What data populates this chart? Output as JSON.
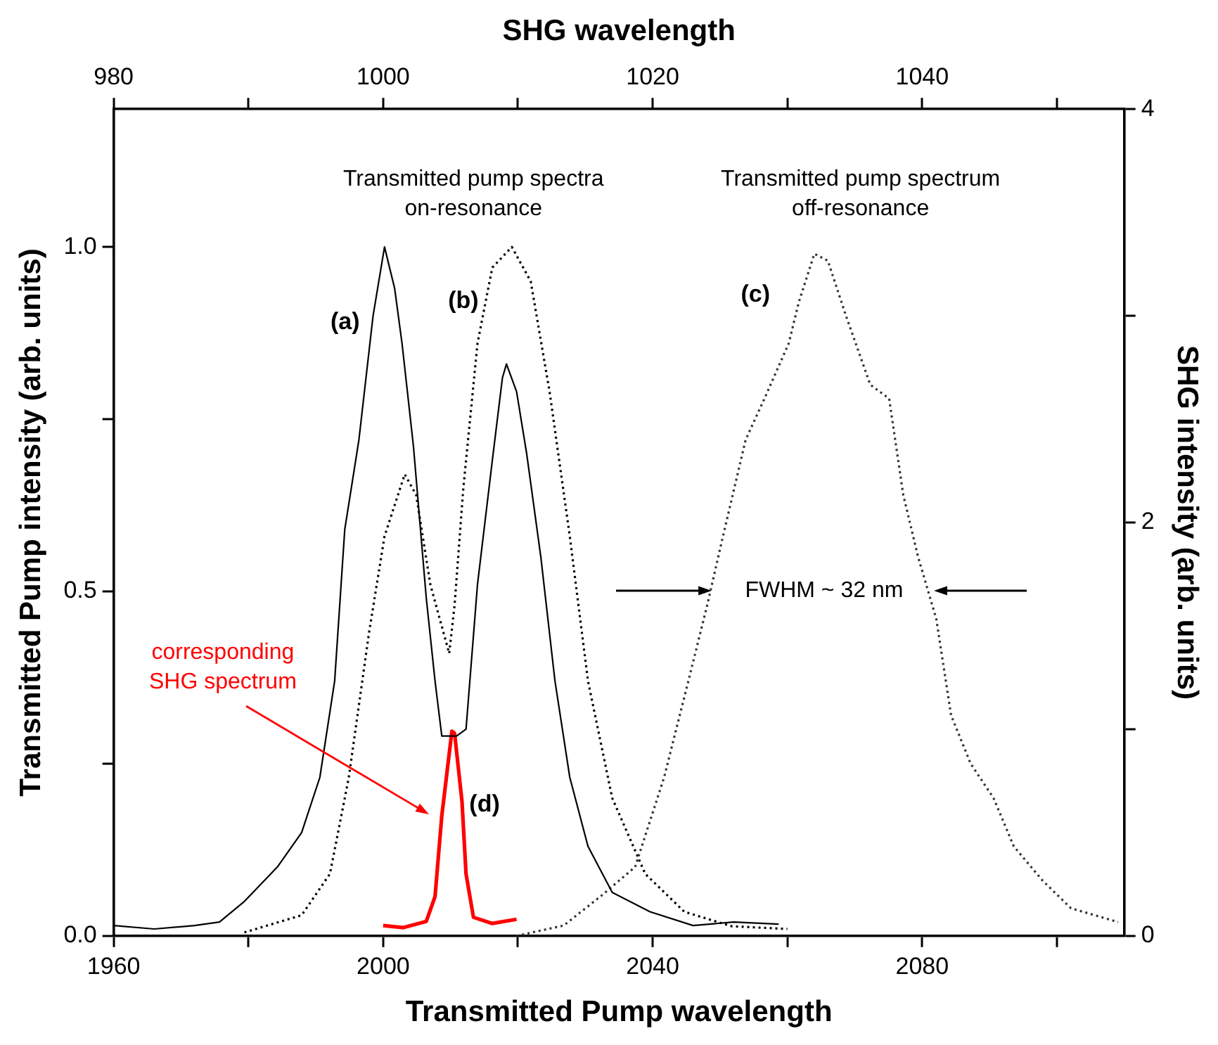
{
  "chart_data": {
    "type": "line",
    "xlabel": "Transmitted Pump wavelength",
    "x2label": "SHG wavelength",
    "ylabel": "Transmitted Pump intensity (arb. units)",
    "y2label": "SHG intensity (arb. units)",
    "xlim": [
      1960,
      2110
    ],
    "xticks": [
      1960,
      {
        "value": 1980,
        "label": null
      },
      2000,
      {
        "value": 2020,
        "label": null
      },
      2040,
      {
        "value": 2060,
        "label": null
      },
      2080,
      {
        "value": 2100,
        "label": null
      }
    ],
    "x2lim": [
      980,
      1055
    ],
    "x2ticks": [
      980,
      {
        "value": 990,
        "label": null
      },
      1000,
      {
        "value": 1010,
        "label": null
      },
      1020,
      {
        "value": 1030,
        "label": null
      },
      1040,
      {
        "value": 1050,
        "label": null
      }
    ],
    "ylim": [
      0,
      1.2
    ],
    "yticks": [
      {
        "value": 0,
        "label": "0.0"
      },
      {
        "value": 0.25,
        "label": null
      },
      0.5,
      {
        "value": 0.75,
        "label": null
      },
      {
        "value": 1,
        "label": "1.0"
      }
    ],
    "y2lim": [
      0,
      4
    ],
    "y2ticks": [
      0,
      {
        "value": 1,
        "label": null
      },
      2,
      {
        "value": 3,
        "label": null
      },
      4
    ],
    "grid": false,
    "legend": false,
    "marker": "none",
    "series": [
      {
        "color": "#000000",
        "line_style": "solid",
        "x": [
          1960,
          1966,
          1972,
          1975.7,
          1979.4,
          1984.3,
          1987.9,
          1990.6,
          1992.8,
          1994.3,
          1996.4,
          1998.5,
          2000.2,
          2001.7,
          2002.8,
          2004.5,
          2006.4,
          2007.7,
          2008.7,
          2010.9,
          2012.3,
          2014,
          2016.2,
          2017.7,
          2018.3,
          2019.8,
          2021.3,
          2023.4,
          2025.5,
          2027.7,
          2030.4,
          2034,
          2039.6,
          2046,
          2052,
          2058.7
        ],
        "values": [
          0.015,
          0.01,
          0.015,
          0.02,
          0.05,
          0.1,
          0.15,
          0.23,
          0.37,
          0.59,
          0.72,
          0.9,
          1,
          0.94,
          0.86,
          0.71,
          0.49,
          0.37,
          0.29,
          0.29,
          0.3,
          0.51,
          0.69,
          0.81,
          0.83,
          0.79,
          0.7,
          0.55,
          0.37,
          0.23,
          0.13,
          0.063,
          0.035,
          0.015,
          0.02,
          0.017
        ]
      },
      {
        "color": "#000000",
        "line_style": "dotted",
        "x": [
          1979.4,
          1987.9,
          1992.1,
          1994.9,
          1997.9,
          2000.2,
          2003.2,
          2004.9,
          2007,
          2009.8,
          2010.6,
          2011.9,
          2014,
          2016.2,
          2019.1,
          2021.9,
          2024.7,
          2027.7,
          2030.4,
          2034,
          2038.9,
          2044.7,
          2051.7,
          2060
        ],
        "values": [
          0.005,
          0.03,
          0.09,
          0.23,
          0.44,
          0.58,
          0.67,
          0.64,
          0.51,
          0.41,
          0.48,
          0.65,
          0.86,
          0.97,
          1,
          0.95,
          0.79,
          0.58,
          0.37,
          0.2,
          0.09,
          0.035,
          0.014,
          0.01
        ]
      },
      {
        "color": "#333333",
        "line_style": "dotted",
        "x": [
          2019.8,
          2026.8,
          2032.6,
          2037.4,
          2041.7,
          2045.3,
          2048.1,
          2050.2,
          2053.8,
          2056.6,
          2060.2,
          2061.7,
          2064,
          2066,
          2068.7,
          2072.3,
          2075.1,
          2077.2,
          2079.4,
          2082.1,
          2084.3,
          2087.2,
          2090.6,
          2093.6,
          2097.9,
          2102.1,
          2109.1
        ],
        "values": [
          0,
          0.015,
          0.06,
          0.1,
          0.23,
          0.37,
          0.48,
          0.57,
          0.72,
          0.78,
          0.86,
          0.92,
          0.99,
          0.98,
          0.9,
          0.8,
          0.78,
          0.64,
          0.55,
          0.46,
          0.32,
          0.25,
          0.2,
          0.13,
          0.08,
          0.04,
          0.02
        ]
      },
      {
        "color": "#ff0000",
        "line_style": "solid",
        "axis": "y2",
        "x": [
          2000,
          2003,
          2006.4,
          2007.7,
          2008.7,
          2010.2,
          2010.6,
          2011.7,
          2012.3,
          2013.4,
          2016.2,
          2019.8
        ],
        "values": [
          0.05,
          0.04,
          0.07,
          0.19,
          0.58,
          0.99,
          0.98,
          0.65,
          0.3,
          0.09,
          0.06,
          0.08
        ]
      }
    ],
    "annotations": [
      "Transmitted pump spectra\non-resonance",
      "Transmitted pump spectrum\noff-resonance",
      "(a)",
      "(b)",
      "(c)",
      "(d)",
      "FWHM ~ 32 nm",
      "corresponding\nSHG spectrum"
    ]
  }
}
